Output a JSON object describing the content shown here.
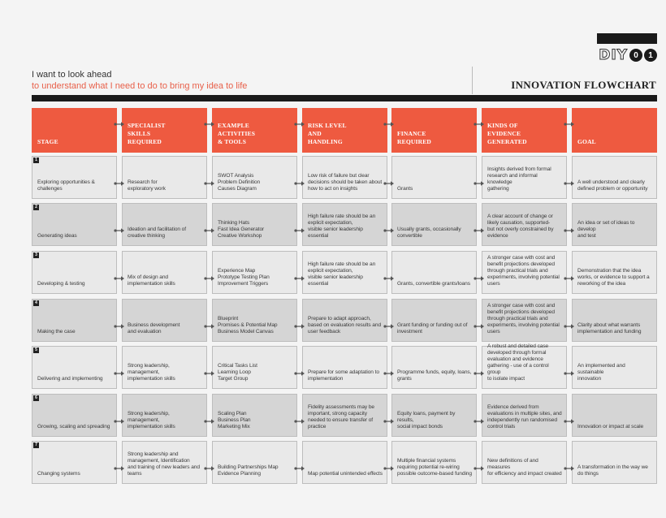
{
  "logo": {
    "text": "DIY",
    "number": "01"
  },
  "header": {
    "intro_line1": "I want to look ahead",
    "intro_line2": "to understand what I need to do to bring my idea to life",
    "title": "INNOVATION FLOWCHART"
  },
  "colors": {
    "accent": "#ee5a40",
    "row_light": "#e9e9e9",
    "row_dark": "#d5d5d5",
    "bar": "#1a1a1a"
  },
  "columns": [
    "STAGE",
    "SPECIALIST\nSKILLS\nREQUIRED",
    "EXAMPLE\nACTIVITIES\n& TOOLS",
    "RISK LEVEL\nAND\nHANDLING",
    "FINANCE\nREQUIRED",
    "KINDS OF\nEVIDENCE\nGENERATED",
    "GOAL"
  ],
  "rows": [
    {
      "num": "1",
      "cells": [
        "Exploring opportunities &\nchallenges",
        "Research for\nexploratory work",
        "SWOT Analysis\nProblem Definition\nCauses Diagram",
        "Low risk of failure but clear\ndecisions should be taken about\nhow to act on insights",
        "Grants",
        "Insights derived from formal\nresearch and informal knowledge\ngathering",
        "A well understood and clearly\ndefined problem or opportunity"
      ]
    },
    {
      "num": "2",
      "cells": [
        "Generating ideas",
        "Ideation and facilitation of\ncreative thinking",
        "Thinking Hats\nFast Idea Generator\nCreative Workshop",
        "High failure rate should be an\nexplicit expectation,\nvisible senior leadership\nessential",
        "Usually grants, occasionally\nconvertible",
        "A clear account of change or\nlikely causation, supported-\nbut not overly constrained by\nevidence",
        "An idea or set of ideas to develop\nand test"
      ]
    },
    {
      "num": "3",
      "cells": [
        "Developing & testing",
        "Mix of design and\nimplementation skills",
        "Experience Map\nPrototype Testing Plan\nImprovement Triggers",
        "High failure rate should be an\nexplicit expectation,\nvisible senior leadership\nessential",
        "Grants, convertible grants/loans",
        "A stronger case with cost and\nbenefit projections developed\nthrough practical trials and\nexperiments, involving potential\nusers",
        "Demonstration that the idea\nworks, or evidence to support a\nreworking of the idea"
      ]
    },
    {
      "num": "4",
      "cells": [
        "Making the case",
        "Business development\nand evaluation",
        "Blueprint\nPromises & Potential Map\nBusiness Model Canvas",
        "Prepare to adapt approach,\nbased on evaluation results and\nuser feedback",
        "Grant funding or funding out of\ninvestment",
        "A stronger case with cost and\nbenefit projections developed\nthrough practical trials and\nexperiments, involving potential\nusers",
        "Clarity about what warrants\nimplementation and funding"
      ]
    },
    {
      "num": "5",
      "cells": [
        "Delivering and implementing",
        "Strong leadership, management,\nimplementation skills",
        "Critical Tasks List\nLearning Loop\nTarget Group",
        "Prepare for some adaptation to\nimplementation",
        "Programme funds, equity, loans,\ngrants",
        "A robust and detailed case\ndeveloped through formal\nevaluation and evidence\ngathering - use of a control group\nto isolate impact",
        "An implemented and sustainable\ninnovation"
      ]
    },
    {
      "num": "6",
      "cells": [
        "Growing, scaling and spreading",
        "Strong leadership, management,\nimplementation skills",
        "Scaling Plan\nBusiness Plan\nMarketing Mix",
        "Fidelity assessments may be\nimportant, strong capacity\nneeded to ensure transfer of\npractice",
        "Equity loans, payment by results,\nsocial impact bonds",
        "Evidence derived from\nevaluations in multiple sites, and\nindependently run randomised\ncontrol trials",
        "Innovation or impact at scale"
      ]
    },
    {
      "num": "7",
      "cells": [
        "Changing systems",
        "Strong leadership and\nmanagement, Identification\nand training of new leaders and\nteams",
        "Building Partnerships Map\nEvidence Planning",
        "Map potential unintended effects",
        "Multiple financial systems\nrequiring potential re-wiring\npossible outcome-based funding",
        "New definitions of and measures\nfor efficiency and impact created",
        "A transformation in the way we\ndo things"
      ]
    }
  ]
}
